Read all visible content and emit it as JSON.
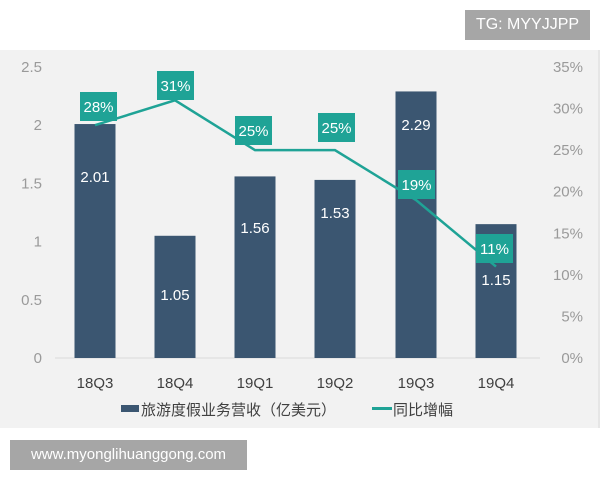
{
  "watermark_top": "TG: MYYJJPP",
  "watermark_bottom": "www.myonglihuanggong.com",
  "colors": {
    "bar": "#3b5671",
    "line": "#1fa396",
    "label_box": "#1fa396",
    "panel_bg": "#f2f2f2",
    "axis_text": "#9a9a9a"
  },
  "legend": {
    "bar_label": "旅游度假业务营收（亿美元）",
    "line_label": "同比增幅"
  },
  "chart_data": {
    "type": "bar+line",
    "title": "",
    "categories": [
      "18Q3",
      "18Q4",
      "19Q1",
      "19Q2",
      "19Q3",
      "19Q4"
    ],
    "series": [
      {
        "name": "旅游度假业务营收（亿美元）",
        "type": "bar",
        "axis": "left",
        "values": [
          2.01,
          1.05,
          1.56,
          1.53,
          2.29,
          1.15
        ],
        "labels": [
          "2.01",
          "1.05",
          "1.56",
          "1.53",
          "2.29",
          "1.15"
        ]
      },
      {
        "name": "同比增幅",
        "type": "line",
        "axis": "right",
        "values": [
          28,
          31,
          25,
          25,
          19,
          11
        ],
        "labels": [
          "28%",
          "31%",
          "25%",
          "25%",
          "19%",
          "11%"
        ]
      }
    ],
    "left_axis": {
      "ticks": [
        "0",
        "0.5",
        "1",
        "1.5",
        "2",
        "2.5"
      ],
      "ylim": [
        0,
        2.5
      ]
    },
    "right_axis": {
      "ticks": [
        "0%",
        "5%",
        "10%",
        "15%",
        "20%",
        "25%",
        "30%",
        "35%"
      ],
      "ylim": [
        0,
        35
      ]
    },
    "xlabel": "",
    "ylabel": "",
    "grid": false,
    "legend_position": "bottom"
  }
}
